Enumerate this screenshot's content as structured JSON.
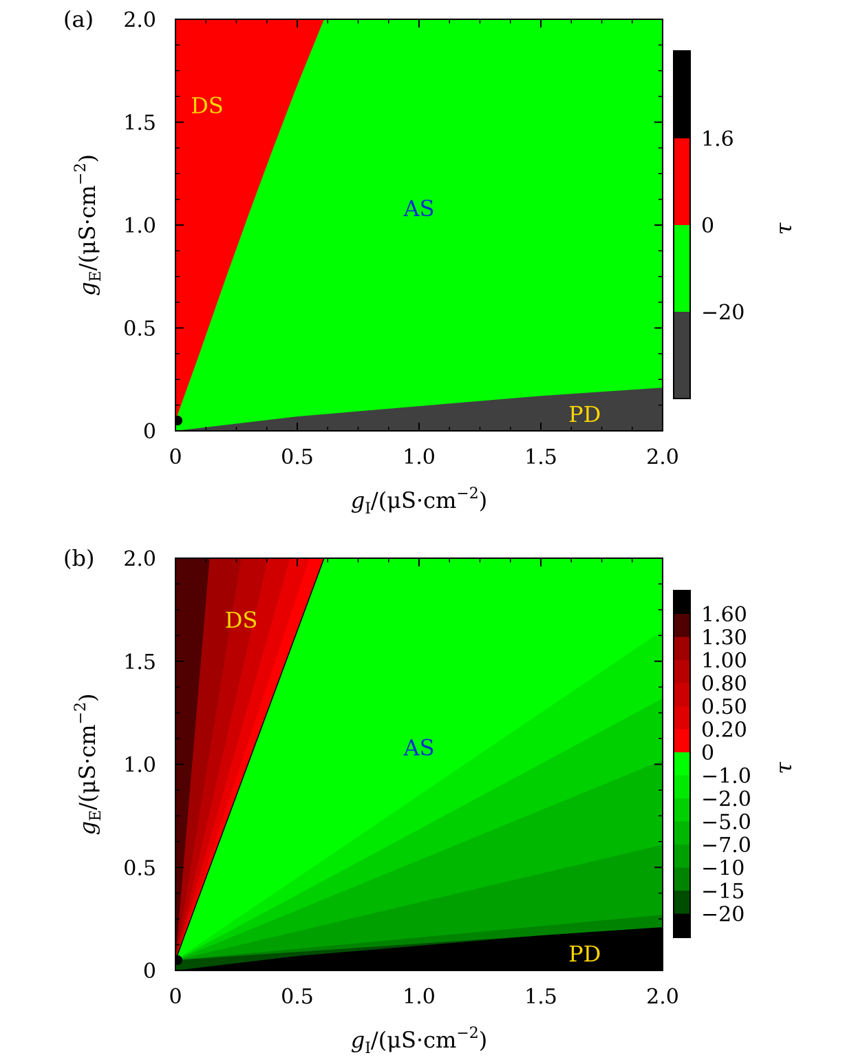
{
  "chart_data": [
    {
      "type": "heatmap",
      "panel_label": "(a)",
      "xlabel": {
        "var": "g",
        "sub": "I",
        "unit": "/(μS·cm",
        "exp": "−2",
        "close": ")"
      },
      "ylabel": {
        "var": "g",
        "sub": "E",
        "unit": "/(μS·cm",
        "exp": "−2",
        "close": ")"
      },
      "xlim": [
        0,
        2.0
      ],
      "ylim": [
        0,
        2.0
      ],
      "x_ticks": [
        "0",
        "0.5",
        "1.0",
        "1.5",
        "2.0"
      ],
      "y_ticks": [
        "0",
        "0.5",
        "1.0",
        "1.5",
        "2.0"
      ],
      "regions": [
        {
          "label": "DS",
          "x": 0.13,
          "y": 1.58,
          "color": "#ffd700"
        },
        {
          "label": "AS",
          "x": 1.0,
          "y": 1.08,
          "color": "#0a2fd0"
        },
        {
          "label": "PD",
          "x": 1.68,
          "y": 0.08,
          "color": "#ffd700"
        }
      ],
      "boundaries": {
        "ds_as": [
          [
            0.0,
            0.05
          ],
          [
            0.1,
            0.38
          ],
          [
            0.2,
            0.72
          ],
          [
            0.3,
            1.05
          ],
          [
            0.4,
            1.37
          ],
          [
            0.5,
            1.68
          ],
          [
            0.61,
            2.0
          ]
        ],
        "as_pd": [
          [
            0.0,
            0.0
          ],
          [
            0.5,
            0.07
          ],
          [
            1.0,
            0.12
          ],
          [
            1.5,
            0.17
          ],
          [
            2.0,
            0.21
          ]
        ]
      },
      "colors": {
        "ds": "#ff0000",
        "as": "#00ff00",
        "pd": "#404040"
      },
      "colorbar": {
        "label": "τ",
        "ticks": [
          "1.6",
          "0",
          "−20"
        ],
        "bands": [
          "#000000",
          "#ff0000",
          "#00ff00",
          "#404040"
        ]
      }
    },
    {
      "type": "heatmap",
      "panel_label": "(b)",
      "xlabel": {
        "var": "g",
        "sub": "I",
        "unit": "/(μS·cm",
        "exp": "−2",
        "close": ")"
      },
      "ylabel": {
        "var": "g",
        "sub": "E",
        "unit": "/(μS·cm",
        "exp": "−2",
        "close": ")"
      },
      "xlim": [
        0,
        2.0
      ],
      "ylim": [
        0,
        2.0
      ],
      "x_ticks": [
        "0",
        "0.5",
        "1.0",
        "1.5",
        "2.0"
      ],
      "y_ticks": [
        "0",
        "0.5",
        "1.0",
        "1.5",
        "2.0"
      ],
      "regions": [
        {
          "label": "DS",
          "x": 0.27,
          "y": 1.7,
          "color": "#ffd700"
        },
        {
          "label": "AS",
          "x": 1.0,
          "y": 1.08,
          "color": "#0a2fd0"
        },
        {
          "label": "PD",
          "x": 1.68,
          "y": 0.08,
          "color": "#ffd700"
        }
      ],
      "ds_wedges": [
        {
          "end_x": 0.14,
          "color": "#500000"
        },
        {
          "end_x": 0.27,
          "color": "#a00000"
        },
        {
          "end_x": 0.38,
          "color": "#b80000"
        },
        {
          "end_x": 0.47,
          "color": "#d00000"
        },
        {
          "end_x": 0.55,
          "color": "#e80000"
        },
        {
          "end_x": 0.61,
          "color": "#ff0000"
        }
      ],
      "as_bands": [
        {
          "end_y_at_xmax": 2.0,
          "color": "#00ff00"
        },
        {
          "end_y_at_xmax": 1.65,
          "color": "#00ea00"
        },
        {
          "end_y_at_xmax": 1.32,
          "color": "#00d000"
        },
        {
          "end_y_at_xmax": 1.02,
          "color": "#00b800"
        },
        {
          "end_y_at_xmax": 0.61,
          "color": "#00a000"
        },
        {
          "end_y_at_xmax": 0.27,
          "color": "#008400"
        },
        {
          "end_y_at_xmax": 0.21,
          "color": "#004d00"
        }
      ],
      "pd_boundary": [
        [
          0.0,
          0.0
        ],
        [
          0.5,
          0.07
        ],
        [
          1.0,
          0.12
        ],
        [
          1.5,
          0.17
        ],
        [
          2.0,
          0.21
        ]
      ],
      "pd_color": "#000000",
      "colorbar": {
        "label": "τ",
        "ticks": [
          "1.60",
          "1.30",
          "1.00",
          "0.80",
          "0.50",
          "0.20",
          "0",
          "−1.0",
          "−2.0",
          "−5.0",
          "−7.0",
          "−10",
          "−15",
          "−20"
        ],
        "bands": [
          "#000000",
          "#500000",
          "#a00000",
          "#b80000",
          "#cc0000",
          "#e00000",
          "#ff0000",
          "#00ff00",
          "#00ea00",
          "#00d000",
          "#00b800",
          "#00a000",
          "#008400",
          "#004d00",
          "#000000"
        ]
      }
    }
  ]
}
